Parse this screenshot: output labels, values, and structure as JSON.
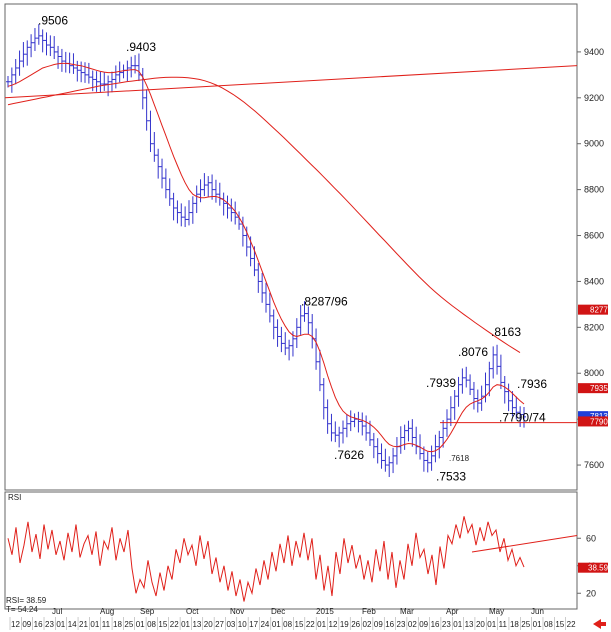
{
  "chart_data": [
    {
      "type": "line",
      "name": "price",
      "ylim": [
        7500,
        9600
      ],
      "yticks": [
        7600,
        7800,
        8000,
        8200,
        8400,
        8600,
        8800,
        9000,
        9200,
        9400
      ],
      "ytick_labels": [
        "7600",
        "7800",
        "8000",
        "8200",
        "8400",
        "8600",
        "8800",
        "9000",
        "9200",
        "9400"
      ],
      "bar_color": "#3333cc",
      "ma_color": "#e0201a",
      "close": [
        9270,
        9300,
        9330,
        9360,
        9390,
        9420,
        9440,
        9460,
        9470,
        9450,
        9430,
        9420,
        9400,
        9380,
        9360,
        9350,
        9340,
        9330,
        9320,
        9310,
        9300,
        9290,
        9280,
        9270,
        9260,
        9260,
        9270,
        9280,
        9300,
        9310,
        9320,
        9330,
        9340,
        9340,
        9300,
        9200,
        9100,
        9000,
        8950,
        8900,
        8850,
        8800,
        8760,
        8720,
        8700,
        8680,
        8670,
        8700,
        8740,
        8780,
        8800,
        8820,
        8830,
        8800,
        8780,
        8760,
        8740,
        8720,
        8700,
        8680,
        8650,
        8600,
        8550,
        8500,
        8450,
        8400,
        8350,
        8300,
        8250,
        8200,
        8160,
        8130,
        8110,
        8120,
        8150,
        8200,
        8250,
        8260,
        8220,
        8150,
        8050,
        7950,
        7850,
        7780,
        7740,
        7730,
        7740,
        7760,
        7780,
        7790,
        7800,
        7790,
        7770,
        7740,
        7710,
        7680,
        7650,
        7620,
        7600,
        7610,
        7640,
        7680,
        7720,
        7750,
        7760,
        7720,
        7680,
        7650,
        7620,
        7610,
        7640,
        7680,
        7720,
        7760,
        7800,
        7850,
        7900,
        7950,
        7980,
        7970,
        7930,
        7890,
        7870,
        7900,
        7950,
        8020,
        8080,
        8030,
        7960,
        7920,
        7880,
        7850,
        7830,
        7820,
        7810
      ],
      "ma_fast": [
        9250,
        9255,
        9262,
        9270,
        9280,
        9290,
        9300,
        9310,
        9320,
        9330,
        9335,
        9340,
        9345,
        9348,
        9350,
        9350,
        9348,
        9345,
        9342,
        9340,
        9335,
        9330,
        9325,
        9320,
        9315,
        9312,
        9310,
        9310,
        9312,
        9315,
        9318,
        9320,
        9322,
        9323,
        9315,
        9290,
        9255,
        9215,
        9170,
        9125,
        9080,
        9035,
        8990,
        8945,
        8905,
        8865,
        8830,
        8800,
        8780,
        8770,
        8765,
        8765,
        8768,
        8770,
        8770,
        8765,
        8755,
        8742,
        8725,
        8705,
        8680,
        8650,
        8615,
        8575,
        8535,
        8490,
        8445,
        8400,
        8355,
        8310,
        8270,
        8235,
        8205,
        8180,
        8165,
        8160,
        8165,
        8170,
        8170,
        8160,
        8135,
        8095,
        8045,
        7990,
        7940,
        7895,
        7860,
        7835,
        7820,
        7810,
        7805,
        7800,
        7795,
        7788,
        7778,
        7765,
        7748,
        7728,
        7706,
        7690,
        7682,
        7680,
        7684,
        7690,
        7694,
        7692,
        7686,
        7678,
        7668,
        7660,
        7658,
        7662,
        7672,
        7690,
        7712,
        7738,
        7768,
        7800,
        7830,
        7852,
        7866,
        7874,
        7880,
        7888,
        7900,
        7918,
        7940,
        7950,
        7948,
        7940,
        7928,
        7912,
        7896,
        7880,
        7866
      ],
      "ma_slow": [
        9170,
        9175,
        9180,
        9185,
        9190,
        9195,
        9200,
        9205,
        9210,
        9215,
        9220,
        9225,
        9230,
        9235,
        9240,
        9245,
        9250,
        9255,
        9258,
        9262,
        9266,
        9270,
        9273,
        9276,
        9279,
        9282,
        9285,
        9287,
        9289,
        9290,
        9290,
        9289,
        9287,
        9284,
        9280,
        9274,
        9266,
        9256,
        9244,
        9230,
        9215,
        9198,
        9180,
        9160,
        9140,
        9118,
        9096,
        9073,
        9050,
        9027,
        9003,
        8979,
        8955,
        8931,
        8907,
        8883,
        8858,
        8833,
        8808,
        8783,
        8758,
        8732,
        8706,
        8680,
        8654,
        8628,
        8602,
        8576,
        8550,
        8524,
        8498,
        8472,
        8447,
        8422,
        8398,
        8375,
        8353,
        8332,
        8312,
        8293,
        8275,
        8257,
        8239,
        8221,
        8204,
        8187,
        8170,
        8153,
        8137,
        8121,
        8105,
        8090
      ],
      "trendline": {
        "value_start": 9200,
        "value_end": 9340
      },
      "support_line": {
        "value": 7785
      },
      "annotations": [
        {
          "label": ".9506",
          "value": 9506
        },
        {
          "label": ".9403",
          "value": 9403
        },
        {
          "label": ".8287/96",
          "value": 8296
        },
        {
          "label": ".7626",
          "value": 7626
        },
        {
          "label": ".7939",
          "value": 7939
        },
        {
          "label": ".8076",
          "value": 8076
        },
        {
          "label": ".8163",
          "value": 8163
        },
        {
          "label": ".7936",
          "value": 7936
        },
        {
          "label": ".7533",
          "value": 7533
        },
        {
          "label": ".7790/74",
          "value": 7790
        },
        {
          "label": ".7618",
          "value": 7618
        }
      ],
      "tags": [
        {
          "label": "8277",
          "value": 8277,
          "color": "#d11414"
        },
        {
          "label": "7935",
          "value": 7935,
          "color": "#d11414"
        },
        {
          "label": "7813",
          "value": 7813,
          "color": "#1f3fd6"
        },
        {
          "label": "7790",
          "value": 7790,
          "color": "#d11414"
        }
      ]
    },
    {
      "type": "line",
      "name": "RSI",
      "ylim": [
        10,
        90
      ],
      "yticks": [
        20,
        40,
        60
      ],
      "ytick_labels": [
        "20",
        "40",
        "60"
      ],
      "indicator_title": "RSI",
      "readout": "RSI=   38.59",
      "readout2": "T=    54.24",
      "line_color": "#e0201a",
      "trendline": {
        "value_start": 50,
        "value_end": 62
      },
      "tag": {
        "label": "38.59",
        "value": 38.59,
        "color": "#d11414"
      },
      "values": [
        60,
        48,
        68,
        42,
        55,
        72,
        50,
        63,
        45,
        70,
        52,
        66,
        48,
        58,
        44,
        64,
        50,
        70,
        46,
        56,
        62,
        48,
        65,
        40,
        58,
        52,
        68,
        44,
        60,
        50,
        66,
        38,
        20,
        30,
        24,
        44,
        28,
        18,
        35,
        22,
        40,
        30,
        52,
        42,
        60,
        48,
        55,
        40,
        62,
        45,
        58,
        34,
        46,
        28,
        40,
        22,
        36,
        18,
        30,
        14,
        28,
        20,
        38,
        26,
        44,
        30,
        50,
        36,
        56,
        42,
        62,
        40,
        58,
        46,
        64,
        44,
        60,
        30,
        48,
        22,
        40,
        18,
        50,
        34,
        60,
        42,
        55,
        38,
        48,
        30,
        44,
        28,
        52,
        36,
        58,
        30,
        50,
        24,
        44,
        30,
        56,
        40,
        64,
        46,
        52,
        34,
        48,
        26,
        54,
        38,
        62,
        56,
        70,
        60,
        76,
        64,
        70,
        55,
        68,
        58,
        72,
        62,
        66,
        50,
        60,
        44,
        52,
        40,
        46,
        39
      ]
    }
  ],
  "xaxis": {
    "labels": [
      "12",
      "09",
      "16",
      "23",
      "01",
      "14",
      "21",
      "01",
      "11",
      "18",
      "25",
      "01",
      "08",
      "15",
      "22",
      "01",
      "13",
      "20",
      "27",
      "03",
      "10",
      "17",
      "24",
      "01",
      "08",
      "15",
      "22",
      "01",
      "12",
      "19",
      "26",
      "02",
      "09",
      "16",
      "23",
      "02",
      "09",
      "16",
      "23",
      "01",
      "13",
      "20",
      "01",
      "11",
      "18",
      "25",
      "01",
      "08",
      "15",
      "22"
    ],
    "months": [
      "Jul",
      "Aug",
      "Sep",
      "Oct",
      "Nov",
      "Dec",
      "2015",
      "Feb",
      "Mar",
      "Apr",
      "May",
      "Jun"
    ]
  }
}
